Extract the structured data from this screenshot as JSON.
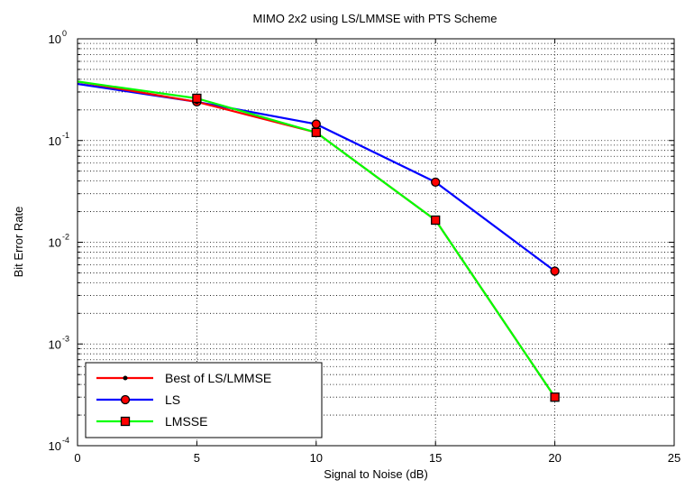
{
  "chart_data": {
    "type": "line",
    "title": "MIMO 2x2 using LS/LMMSE with PTS Scheme",
    "xlabel": "Signal to Noise (dB)",
    "ylabel": "Bit Error Rate",
    "xlim": [
      0,
      25
    ],
    "ylim": [
      0.0001,
      1
    ],
    "yscale": "log",
    "grid": true,
    "x_ticks": [
      "0",
      "5",
      "10",
      "15",
      "20",
      "25"
    ],
    "y_ticks": [
      {
        "base": "10",
        "exp": "0"
      },
      {
        "base": "10",
        "exp": "-1"
      },
      {
        "base": "10",
        "exp": "-2"
      },
      {
        "base": "10",
        "exp": "-3"
      },
      {
        "base": "10",
        "exp": "-4"
      }
    ],
    "legend_position": "bottom-left",
    "series": [
      {
        "name": "Best of LS/LMMSE",
        "color": "#ff0000",
        "marker": "dot",
        "x": [
          0,
          5,
          10,
          15,
          20
        ],
        "y": [
          0.38,
          0.24,
          0.12,
          0.0165,
          0.0003
        ]
      },
      {
        "name": "LS",
        "color": "#0000ff",
        "marker": "circle",
        "x": [
          0,
          5,
          10,
          15,
          20
        ],
        "y": [
          0.36,
          0.24,
          0.145,
          0.039,
          0.0052
        ]
      },
      {
        "name": "LMSSE",
        "color": "#00ff00",
        "marker": "square",
        "x": [
          0,
          5,
          10,
          15,
          20
        ],
        "y": [
          0.38,
          0.26,
          0.12,
          0.0165,
          0.0003
        ]
      }
    ]
  }
}
